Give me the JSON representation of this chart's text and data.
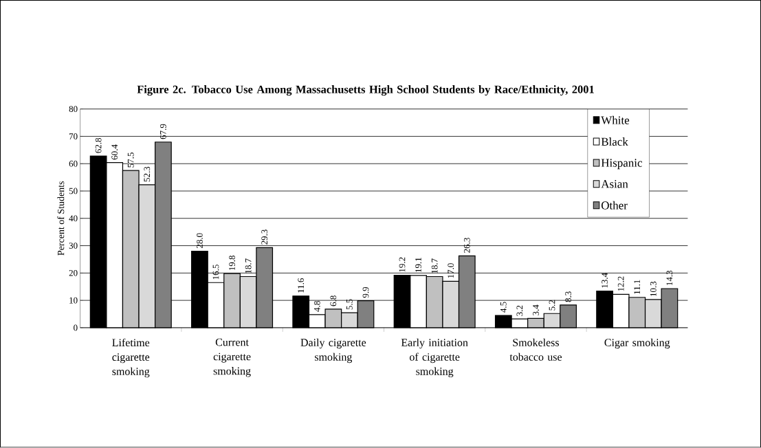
{
  "chart_data": {
    "type": "bar",
    "title": "Figure 2c.  Tobacco Use Among Massachusetts High School Students by Race/Ethnicity, 2001",
    "ylabel": "Percent of Students",
    "categories": [
      "Lifetime cigarette smoking",
      "Current cigarette smoking",
      "Daily cigarette smoking",
      "Early initiation of cigarette smoking",
      "Smokeless tobacco use",
      "Cigar smoking"
    ],
    "series": [
      {
        "name": "White",
        "color": "#000000",
        "values": [
          62.8,
          28.0,
          11.6,
          19.2,
          4.5,
          13.4
        ],
        "value_labels": [
          "62.8",
          "28.0",
          "11.6",
          "19.2",
          "4.5",
          "13.4"
        ]
      },
      {
        "name": "Black",
        "color": "#ffffff",
        "values": [
          60.4,
          16.5,
          4.8,
          19.1,
          3.2,
          12.2
        ],
        "value_labels": [
          "60.4",
          "16.5",
          "4.8",
          "19.1",
          "3.2",
          "12.2"
        ]
      },
      {
        "name": "Hispanic",
        "color": "#c0c0c0",
        "values": [
          57.5,
          19.8,
          6.8,
          18.7,
          3.4,
          11.1
        ],
        "value_labels": [
          "57.5",
          "19.8",
          "6.8",
          "18.7",
          "3.4",
          "11.1"
        ]
      },
      {
        "name": "Asian",
        "color": "#d9d9d9",
        "values": [
          52.3,
          18.7,
          5.5,
          17.0,
          5.2,
          10.3
        ],
        "value_labels": [
          "52.3",
          "18.7",
          "5.5",
          "17.0",
          "5.2",
          "10.3"
        ]
      },
      {
        "name": "Other",
        "color": "#808080",
        "values": [
          67.9,
          29.3,
          9.9,
          26.3,
          8.3,
          14.3
        ],
        "value_labels": [
          "67.9",
          "29.3",
          "9.9",
          "26.3",
          "8.3",
          "14.3"
        ]
      }
    ],
    "ylim": [
      0,
      80
    ],
    "yticks": [
      0,
      10,
      20,
      30,
      40,
      50,
      60,
      70,
      80
    ],
    "grid": "y",
    "legend": "top right"
  }
}
